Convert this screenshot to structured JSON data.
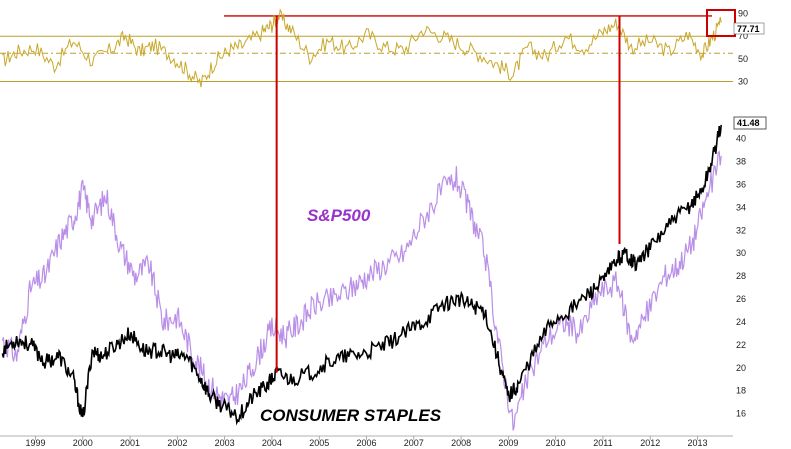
{
  "chart_data": [
    {
      "type": "line",
      "panel": "oscillator",
      "y_ticks": [
        90,
        70,
        50,
        30
      ],
      "y_range": [
        18,
        95
      ],
      "reference_lines": [
        {
          "value": 88,
          "color": "#cc0000"
        },
        {
          "value": 70,
          "color": "#b8a030"
        },
        {
          "value": 55,
          "color": "#b8a030"
        },
        {
          "value": 30,
          "color": "#b8a030"
        }
      ],
      "last_value_tag": "77.71",
      "series": [
        {
          "color": "#c8a82a",
          "x": [
            1998.3,
            1998.6,
            1999.0,
            1999.4,
            1999.8,
            2000.2,
            2000.6,
            2000.9,
            2001.2,
            2001.5,
            2001.9,
            2002.2,
            2002.5,
            2002.8,
            2003.1,
            2003.4,
            2003.8,
            2004.0,
            2004.15,
            2004.4,
            2004.8,
            2005.2,
            2005.6,
            2006.0,
            2006.4,
            2006.8,
            2007.2,
            2007.6,
            2008.0,
            2008.4,
            2008.8,
            2009.1,
            2009.4,
            2009.8,
            2010.2,
            2010.6,
            2011.0,
            2011.3,
            2011.6,
            2012.0,
            2012.4,
            2012.8,
            2013.1,
            2013.3,
            2013.5
          ],
          "values": [
            48,
            56,
            60,
            44,
            66,
            48,
            58,
            70,
            56,
            62,
            52,
            40,
            28,
            48,
            58,
            62,
            74,
            80,
            88,
            76,
            52,
            66,
            58,
            72,
            60,
            58,
            76,
            70,
            62,
            54,
            44,
            36,
            60,
            52,
            70,
            60,
            74,
            82,
            60,
            66,
            56,
            72,
            54,
            68,
            82
          ]
        }
      ]
    },
    {
      "type": "line",
      "panel": "price",
      "x_ticks": [
        1999,
        2000,
        2001,
        2002,
        2003,
        2004,
        2005,
        2006,
        2007,
        2008,
        2009,
        2010,
        2011,
        2012,
        2013
      ],
      "x_range": [
        1998.25,
        2013.75
      ],
      "y_ticks": [
        16,
        18,
        20,
        22,
        24,
        26,
        28,
        30,
        32,
        34,
        36,
        38,
        40
      ],
      "y_range": [
        14.05,
        41.8
      ],
      "last_value_tag": "41.48",
      "series": [
        {
          "name": "S&P500",
          "color": "#b98fe8",
          "x": [
            1998.3,
            1998.6,
            1998.9,
            1999.2,
            1999.5,
            1999.8,
            2000.0,
            2000.2,
            2000.5,
            2000.8,
            2001.1,
            2001.4,
            2001.7,
            2002.0,
            2002.3,
            2002.6,
            2002.9,
            2003.1,
            2003.4,
            2003.7,
            2004.0,
            2004.3,
            2004.6,
            2004.9,
            2005.3,
            2005.7,
            2006.0,
            2006.4,
            2006.8,
            2007.2,
            2007.6,
            2007.9,
            2008.2,
            2008.5,
            2008.8,
            2009.1,
            2009.4,
            2009.8,
            2010.2,
            2010.5,
            2010.9,
            2011.3,
            2011.6,
            2011.9,
            2012.3,
            2012.6,
            2012.9,
            2013.2,
            2013.5
          ],
          "values": [
            22.5,
            21.0,
            27.0,
            28.0,
            31.0,
            33.0,
            35.5,
            33.0,
            35.0,
            30.5,
            28.0,
            29.0,
            24.0,
            24.5,
            21.5,
            19.0,
            17.5,
            17.0,
            18.5,
            21.0,
            23.5,
            22.8,
            24.0,
            25.5,
            26.0,
            27.0,
            28.0,
            29.0,
            30.0,
            33.0,
            35.5,
            36.5,
            33.5,
            30.0,
            22.0,
            15.0,
            19.0,
            22.5,
            24.0,
            23.0,
            26.5,
            27.5,
            22.5,
            24.5,
            28.0,
            29.0,
            31.0,
            35.0,
            38.5
          ]
        },
        {
          "name": "CONSUMER STAPLES",
          "color": "#000000",
          "x": [
            1998.3,
            1998.6,
            1998.9,
            1999.2,
            1999.5,
            1999.8,
            2000.0,
            2000.2,
            2000.4,
            2000.7,
            2001.0,
            2001.3,
            2001.6,
            2001.9,
            2002.2,
            2002.5,
            2002.7,
            2003.0,
            2003.3,
            2003.6,
            2003.9,
            2004.1,
            2004.4,
            2004.8,
            2005.2,
            2005.6,
            2006.0,
            2006.4,
            2006.8,
            2007.2,
            2007.6,
            2007.9,
            2008.2,
            2008.5,
            2008.8,
            2009.0,
            2009.2,
            2009.5,
            2009.9,
            2010.3,
            2010.7,
            2011.0,
            2011.3,
            2011.5,
            2011.7,
            2012.0,
            2012.4,
            2012.8,
            2013.1,
            2013.3,
            2013.5
          ],
          "values": [
            21.5,
            22.5,
            22.0,
            20.5,
            21.0,
            19.0,
            15.5,
            21.5,
            21.0,
            22.0,
            23.0,
            21.5,
            21.5,
            21.0,
            21.0,
            19.0,
            17.5,
            16.5,
            15.8,
            17.5,
            18.5,
            19.5,
            19.0,
            19.5,
            20.5,
            21.0,
            21.3,
            22.0,
            23.0,
            24.0,
            25.5,
            26.0,
            25.5,
            25.0,
            20.5,
            17.5,
            18.5,
            21.0,
            24.0,
            25.0,
            26.5,
            27.5,
            29.5,
            30.0,
            29.0,
            30.5,
            32.5,
            34.0,
            35.5,
            38.0,
            41.2
          ]
        }
      ]
    }
  ],
  "labels": {
    "spx": "S&P500",
    "staples": "CONSUMER STAPLES"
  },
  "markers": {
    "color": "#cc0000",
    "vertical_lines_x": [
      2004.1,
      2011.35
    ]
  }
}
